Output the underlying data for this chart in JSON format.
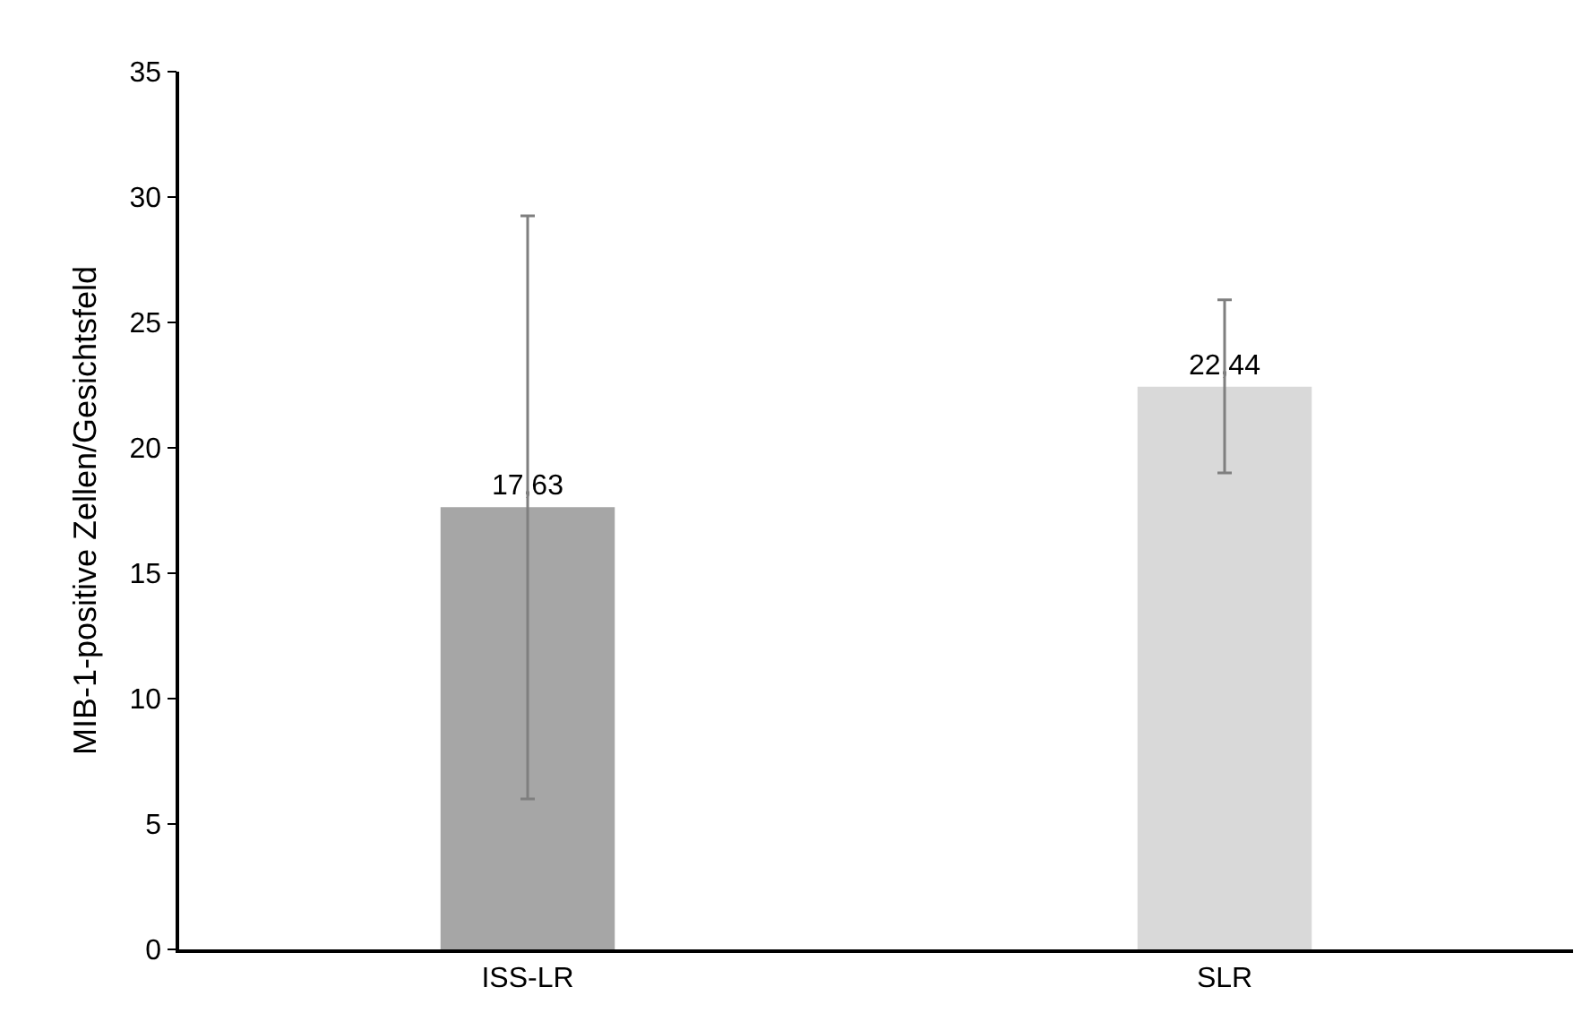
{
  "chart_data": {
    "type": "bar",
    "ylabel": "MIB-1-positive Zellen/Gesichtsfeld",
    "categories": [
      "ISS-LR",
      "SLR"
    ],
    "values": [
      17.63,
      22.44
    ],
    "colors": [
      "#a6a6a6",
      "#d9d9d9"
    ],
    "errors": [
      [
        6.0,
        29.25
      ],
      [
        19.0,
        25.9
      ]
    ],
    "value_labels": [
      "17,63",
      "22,44"
    ],
    "ylim": [
      0,
      35
    ],
    "yticks": [
      0,
      5,
      10,
      15,
      20,
      25,
      30,
      35
    ],
    "grid": false
  }
}
